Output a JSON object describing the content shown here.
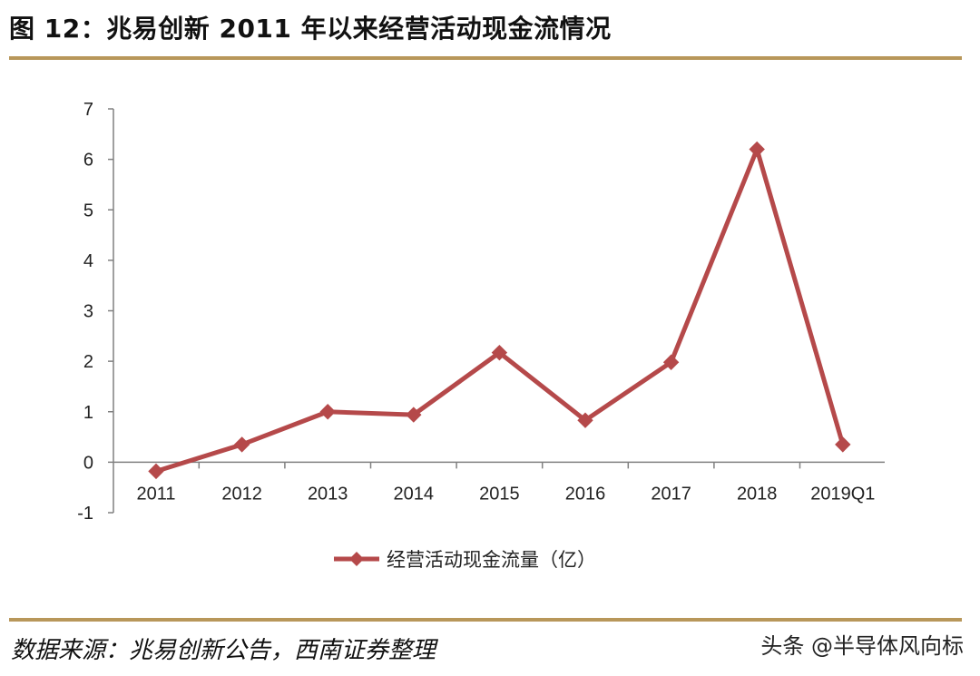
{
  "figure": {
    "title": "图 12：兆易创新 2011 年以来经营活动现金流情况",
    "source": "数据来源：兆易创新公告，西南证券整理",
    "watermark": "头条 @半导体风向标"
  },
  "chart_data": {
    "type": "line",
    "title": "",
    "xlabel": "",
    "ylabel": "",
    "categories": [
      "2011",
      "2012",
      "2013",
      "2014",
      "2015",
      "2016",
      "2017",
      "2018",
      "2019Q1"
    ],
    "series": [
      {
        "name": "经营活动现金流量（亿）",
        "values": [
          -0.18,
          0.35,
          1.0,
          0.94,
          2.17,
          0.83,
          1.98,
          6.2,
          0.35
        ],
        "color": "#b5494a",
        "marker": "diamond"
      }
    ],
    "ylim": [
      -1,
      7
    ],
    "yticks": [
      -1,
      0,
      1,
      2,
      3,
      4,
      5,
      6,
      7
    ],
    "grid": false,
    "legend": "bottom-center"
  }
}
